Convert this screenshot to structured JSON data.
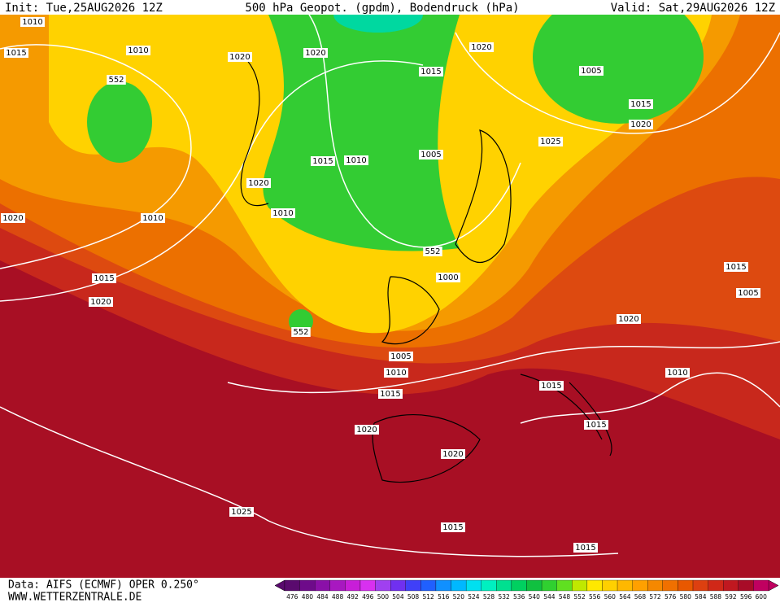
{
  "header": {
    "init": "Init: Tue,25AUG2026 12Z",
    "title": "500 hPa Geopot. (gpdm), Bodendruck (hPa)",
    "valid": "Valid: Sat,29AUG2026 12Z"
  },
  "map": {
    "isobar_labels": [
      1010,
      1010,
      1015,
      1020,
      552,
      1020,
      1015,
      1020,
      1005,
      1015,
      1020,
      1025,
      1005,
      1015,
      1010,
      1020,
      1010,
      1020,
      1010,
      1015,
      1020,
      552,
      1000,
      1015,
      1005,
      1020,
      552,
      1005,
      1010,
      1015,
      1010,
      1015,
      1015,
      1020,
      1020,
      1025,
      1015,
      1015
    ]
  },
  "colorbar": {
    "levels": [
      476,
      480,
      484,
      488,
      492,
      496,
      500,
      504,
      508,
      512,
      516,
      520,
      524,
      528,
      532,
      536,
      540,
      544,
      548,
      552,
      556,
      560,
      564,
      568,
      572,
      576,
      580,
      584,
      588,
      592,
      596,
      600
    ],
    "colors": [
      "#5a0a6e",
      "#6e0b8a",
      "#8a10a8",
      "#a818c0",
      "#c81ed8",
      "#d830f0",
      "#a040f0",
      "#7030f0",
      "#4040f8",
      "#2060ff",
      "#1090ff",
      "#00b8ff",
      "#00e0f0",
      "#00f0c0",
      "#00e090",
      "#00d060",
      "#10c040",
      "#30d030",
      "#60e020",
      "#c0e800",
      "#ffe800",
      "#ffd000",
      "#ffb800",
      "#ffa000",
      "#f58800",
      "#f07000",
      "#e85800",
      "#dd4010",
      "#d02818",
      "#c01820",
      "#a80c28",
      "#c00060"
    ]
  },
  "footer": {
    "source": "Data: AIFS (ECMWF) OPER 0.250°",
    "site": "WWW.WETTERZENTRALE.DE"
  }
}
